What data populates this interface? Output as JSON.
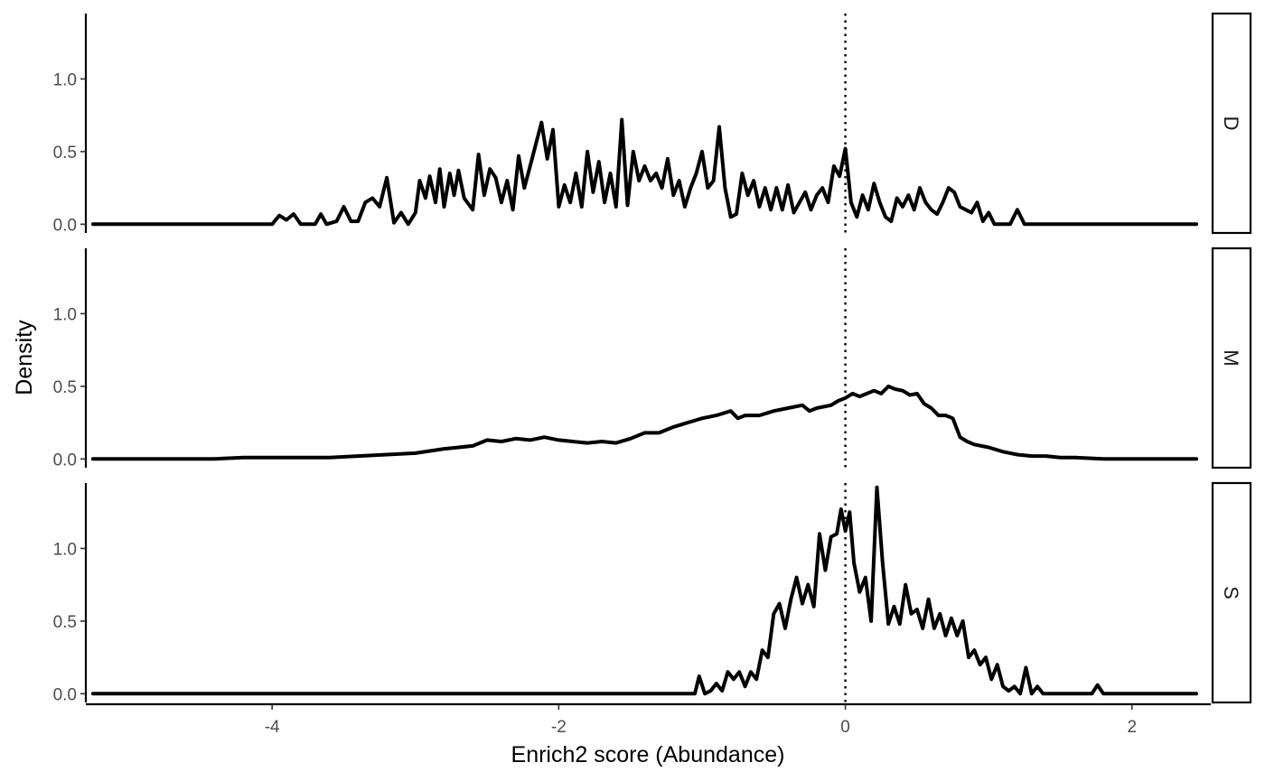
{
  "chart_data": {
    "type": "line",
    "title": "",
    "xlabel": "Enrich2 score (Abundance)",
    "ylabel": "Density",
    "xlim": [
      -5.3,
      2.55
    ],
    "ylim": [
      -0.06,
      1.45
    ],
    "x_ticks": [
      -4,
      -2,
      0,
      2
    ],
    "x_tick_labels": [
      "-4",
      "-2",
      "0",
      "2"
    ],
    "y_ticks": [
      0,
      0.5,
      1
    ],
    "y_tick_labels": [
      "0.0",
      "0.5",
      "1.0"
    ],
    "reference_line": {
      "x": 0,
      "style": "dotted"
    },
    "facet_by": "row",
    "grid": false,
    "legend": "none",
    "line_color": "#000000",
    "series": [
      {
        "facet": "D",
        "points": [
          [
            -5.25,
            0
          ],
          [
            -4.0,
            0
          ],
          [
            -3.95,
            0.06
          ],
          [
            -3.9,
            0.03
          ],
          [
            -3.85,
            0.07
          ],
          [
            -3.8,
            0
          ],
          [
            -3.7,
            0
          ],
          [
            -3.66,
            0.07
          ],
          [
            -3.62,
            0
          ],
          [
            -3.55,
            0.02
          ],
          [
            -3.5,
            0.12
          ],
          [
            -3.45,
            0.02
          ],
          [
            -3.4,
            0.02
          ],
          [
            -3.35,
            0.15
          ],
          [
            -3.3,
            0.18
          ],
          [
            -3.25,
            0.12
          ],
          [
            -3.2,
            0.32
          ],
          [
            -3.15,
            0.01
          ],
          [
            -3.1,
            0.08
          ],
          [
            -3.05,
            0
          ],
          [
            -3.0,
            0.08
          ],
          [
            -2.97,
            0.3
          ],
          [
            -2.93,
            0.18
          ],
          [
            -2.9,
            0.33
          ],
          [
            -2.86,
            0.15
          ],
          [
            -2.83,
            0.38
          ],
          [
            -2.8,
            0.12
          ],
          [
            -2.76,
            0.35
          ],
          [
            -2.73,
            0.2
          ],
          [
            -2.7,
            0.37
          ],
          [
            -2.66,
            0.18
          ],
          [
            -2.6,
            0.1
          ],
          [
            -2.56,
            0.48
          ],
          [
            -2.52,
            0.2
          ],
          [
            -2.48,
            0.38
          ],
          [
            -2.44,
            0.32
          ],
          [
            -2.4,
            0.15
          ],
          [
            -2.36,
            0.3
          ],
          [
            -2.32,
            0.1
          ],
          [
            -2.28,
            0.47
          ],
          [
            -2.24,
            0.25
          ],
          [
            -2.2,
            0.4
          ],
          [
            -2.16,
            0.55
          ],
          [
            -2.12,
            0.7
          ],
          [
            -2.08,
            0.45
          ],
          [
            -2.04,
            0.65
          ],
          [
            -2.0,
            0.12
          ],
          [
            -1.96,
            0.27
          ],
          [
            -1.92,
            0.15
          ],
          [
            -1.88,
            0.35
          ],
          [
            -1.84,
            0.12
          ],
          [
            -1.8,
            0.5
          ],
          [
            -1.76,
            0.22
          ],
          [
            -1.72,
            0.43
          ],
          [
            -1.68,
            0.15
          ],
          [
            -1.64,
            0.35
          ],
          [
            -1.6,
            0.12
          ],
          [
            -1.56,
            0.72
          ],
          [
            -1.52,
            0.13
          ],
          [
            -1.48,
            0.5
          ],
          [
            -1.44,
            0.3
          ],
          [
            -1.4,
            0.4
          ],
          [
            -1.36,
            0.3
          ],
          [
            -1.32,
            0.35
          ],
          [
            -1.28,
            0.25
          ],
          [
            -1.24,
            0.45
          ],
          [
            -1.2,
            0.2
          ],
          [
            -1.16,
            0.3
          ],
          [
            -1.12,
            0.12
          ],
          [
            -1.08,
            0.25
          ],
          [
            -1.04,
            0.35
          ],
          [
            -1.0,
            0.5
          ],
          [
            -0.96,
            0.25
          ],
          [
            -0.92,
            0.3
          ],
          [
            -0.88,
            0.67
          ],
          [
            -0.84,
            0.25
          ],
          [
            -0.8,
            0.05
          ],
          [
            -0.76,
            0.07
          ],
          [
            -0.72,
            0.35
          ],
          [
            -0.68,
            0.2
          ],
          [
            -0.64,
            0.3
          ],
          [
            -0.6,
            0.12
          ],
          [
            -0.56,
            0.25
          ],
          [
            -0.52,
            0.1
          ],
          [
            -0.48,
            0.25
          ],
          [
            -0.44,
            0.1
          ],
          [
            -0.4,
            0.27
          ],
          [
            -0.36,
            0.08
          ],
          [
            -0.32,
            0.15
          ],
          [
            -0.28,
            0.22
          ],
          [
            -0.24,
            0.1
          ],
          [
            -0.2,
            0.2
          ],
          [
            -0.16,
            0.25
          ],
          [
            -0.12,
            0.15
          ],
          [
            -0.08,
            0.4
          ],
          [
            -0.04,
            0.33
          ],
          [
            0.0,
            0.52
          ],
          [
            0.04,
            0.15
          ],
          [
            0.08,
            0.05
          ],
          [
            0.12,
            0.2
          ],
          [
            0.16,
            0.1
          ],
          [
            0.2,
            0.28
          ],
          [
            0.24,
            0.15
          ],
          [
            0.28,
            0.05
          ],
          [
            0.32,
            0.02
          ],
          [
            0.36,
            0.18
          ],
          [
            0.4,
            0.12
          ],
          [
            0.44,
            0.2
          ],
          [
            0.48,
            0.1
          ],
          [
            0.52,
            0.25
          ],
          [
            0.56,
            0.15
          ],
          [
            0.6,
            0.1
          ],
          [
            0.64,
            0.07
          ],
          [
            0.68,
            0.15
          ],
          [
            0.72,
            0.25
          ],
          [
            0.76,
            0.22
          ],
          [
            0.8,
            0.12
          ],
          [
            0.84,
            0.1
          ],
          [
            0.88,
            0.08
          ],
          [
            0.92,
            0.15
          ],
          [
            0.96,
            0.02
          ],
          [
            1.0,
            0.08
          ],
          [
            1.04,
            0
          ],
          [
            1.15,
            0
          ],
          [
            1.2,
            0.1
          ],
          [
            1.25,
            0
          ],
          [
            2.45,
            0
          ]
        ]
      },
      {
        "facet": "M",
        "points": [
          [
            -5.25,
            0
          ],
          [
            -5.0,
            0
          ],
          [
            -4.8,
            0
          ],
          [
            -4.6,
            0
          ],
          [
            -4.4,
            0
          ],
          [
            -4.2,
            0.01
          ],
          [
            -4.0,
            0.01
          ],
          [
            -3.8,
            0.01
          ],
          [
            -3.6,
            0.01
          ],
          [
            -3.4,
            0.02
          ],
          [
            -3.2,
            0.03
          ],
          [
            -3.0,
            0.04
          ],
          [
            -2.8,
            0.07
          ],
          [
            -2.6,
            0.09
          ],
          [
            -2.5,
            0.13
          ],
          [
            -2.4,
            0.12
          ],
          [
            -2.3,
            0.14
          ],
          [
            -2.2,
            0.13
          ],
          [
            -2.1,
            0.15
          ],
          [
            -2.0,
            0.13
          ],
          [
            -1.9,
            0.12
          ],
          [
            -1.8,
            0.11
          ],
          [
            -1.7,
            0.12
          ],
          [
            -1.6,
            0.11
          ],
          [
            -1.5,
            0.14
          ],
          [
            -1.4,
            0.18
          ],
          [
            -1.3,
            0.18
          ],
          [
            -1.2,
            0.22
          ],
          [
            -1.1,
            0.25
          ],
          [
            -1.0,
            0.28
          ],
          [
            -0.9,
            0.3
          ],
          [
            -0.8,
            0.33
          ],
          [
            -0.75,
            0.28
          ],
          [
            -0.7,
            0.3
          ],
          [
            -0.6,
            0.3
          ],
          [
            -0.5,
            0.33
          ],
          [
            -0.4,
            0.35
          ],
          [
            -0.3,
            0.37
          ],
          [
            -0.25,
            0.33
          ],
          [
            -0.2,
            0.35
          ],
          [
            -0.1,
            0.37
          ],
          [
            -0.05,
            0.4
          ],
          [
            0.0,
            0.42
          ],
          [
            0.05,
            0.45
          ],
          [
            0.1,
            0.43
          ],
          [
            0.15,
            0.45
          ],
          [
            0.2,
            0.47
          ],
          [
            0.25,
            0.45
          ],
          [
            0.3,
            0.5
          ],
          [
            0.35,
            0.48
          ],
          [
            0.4,
            0.47
          ],
          [
            0.45,
            0.44
          ],
          [
            0.5,
            0.45
          ],
          [
            0.55,
            0.38
          ],
          [
            0.6,
            0.35
          ],
          [
            0.65,
            0.3
          ],
          [
            0.7,
            0.3
          ],
          [
            0.75,
            0.28
          ],
          [
            0.8,
            0.15
          ],
          [
            0.85,
            0.12
          ],
          [
            0.9,
            0.1
          ],
          [
            1.0,
            0.08
          ],
          [
            1.1,
            0.05
          ],
          [
            1.2,
            0.03
          ],
          [
            1.3,
            0.02
          ],
          [
            1.4,
            0.02
          ],
          [
            1.5,
            0.01
          ],
          [
            1.6,
            0.01
          ],
          [
            1.8,
            0
          ],
          [
            2.0,
            0
          ],
          [
            2.2,
            0
          ],
          [
            2.45,
            0
          ]
        ]
      },
      {
        "facet": "S",
        "points": [
          [
            -5.25,
            0
          ],
          [
            -1.05,
            0
          ],
          [
            -1.02,
            0.12
          ],
          [
            -0.98,
            0
          ],
          [
            -0.94,
            0.02
          ],
          [
            -0.9,
            0.07
          ],
          [
            -0.86,
            0.02
          ],
          [
            -0.82,
            0.15
          ],
          [
            -0.78,
            0.1
          ],
          [
            -0.74,
            0.15
          ],
          [
            -0.7,
            0.05
          ],
          [
            -0.66,
            0.15
          ],
          [
            -0.62,
            0.1
          ],
          [
            -0.58,
            0.3
          ],
          [
            -0.54,
            0.25
          ],
          [
            -0.5,
            0.55
          ],
          [
            -0.46,
            0.62
          ],
          [
            -0.42,
            0.45
          ],
          [
            -0.38,
            0.65
          ],
          [
            -0.34,
            0.8
          ],
          [
            -0.3,
            0.62
          ],
          [
            -0.26,
            0.75
          ],
          [
            -0.22,
            0.6
          ],
          [
            -0.18,
            1.1
          ],
          [
            -0.14,
            0.85
          ],
          [
            -0.1,
            1.08
          ],
          [
            -0.06,
            1.1
          ],
          [
            -0.03,
            1.27
          ],
          [
            0.0,
            1.12
          ],
          [
            0.03,
            1.25
          ],
          [
            0.06,
            0.9
          ],
          [
            0.1,
            0.7
          ],
          [
            0.14,
            0.8
          ],
          [
            0.18,
            0.5
          ],
          [
            0.22,
            1.42
          ],
          [
            0.26,
            0.9
          ],
          [
            0.3,
            0.48
          ],
          [
            0.34,
            0.6
          ],
          [
            0.38,
            0.48
          ],
          [
            0.42,
            0.75
          ],
          [
            0.46,
            0.55
          ],
          [
            0.5,
            0.58
          ],
          [
            0.54,
            0.45
          ],
          [
            0.58,
            0.65
          ],
          [
            0.62,
            0.45
          ],
          [
            0.66,
            0.55
          ],
          [
            0.7,
            0.4
          ],
          [
            0.74,
            0.52
          ],
          [
            0.78,
            0.4
          ],
          [
            0.82,
            0.5
          ],
          [
            0.86,
            0.25
          ],
          [
            0.9,
            0.3
          ],
          [
            0.94,
            0.2
          ],
          [
            0.98,
            0.25
          ],
          [
            1.02,
            0.1
          ],
          [
            1.06,
            0.2
          ],
          [
            1.1,
            0.05
          ],
          [
            1.14,
            0.02
          ],
          [
            1.18,
            0.05
          ],
          [
            1.22,
            0
          ],
          [
            1.26,
            0.18
          ],
          [
            1.3,
            0
          ],
          [
            1.34,
            0.05
          ],
          [
            1.38,
            0
          ],
          [
            1.72,
            0
          ],
          [
            1.76,
            0.06
          ],
          [
            1.8,
            0
          ],
          [
            2.45,
            0
          ]
        ]
      }
    ]
  }
}
